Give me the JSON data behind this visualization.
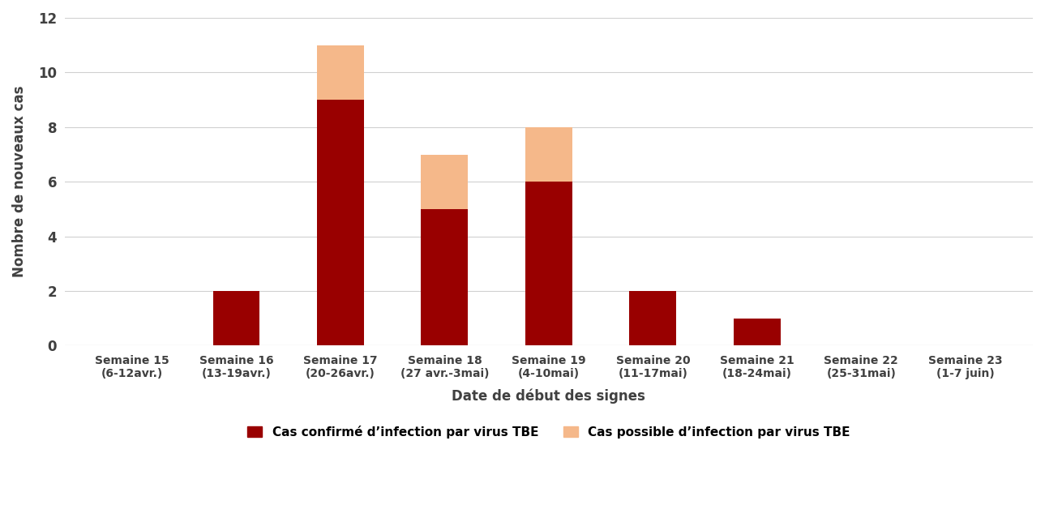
{
  "categories": [
    "Semaine 15\n(6-12avr.)",
    "Semaine 16\n(13-19avr.)",
    "Semaine 17\n(20-26avr.)",
    "Semaine 18\n(27 avr.-3mai)",
    "Semaine 19\n(4-10mai)",
    "Semaine 20\n(11-17mai)",
    "Semaine 21\n(18-24mai)",
    "Semaine 22\n(25-31mai)",
    "Semaine 23\n(1-7 juin)"
  ],
  "confirmed": [
    0,
    2,
    9,
    5,
    6,
    2,
    1,
    0,
    0
  ],
  "possible": [
    0,
    0,
    2,
    2,
    2,
    0,
    0,
    0,
    0
  ],
  "confirmed_color": "#990000",
  "possible_color": "#F5B88A",
  "ylabel": "Nombre de nouveaux cas",
  "xlabel": "Date de début des signes",
  "ylim": [
    0,
    12
  ],
  "yticks": [
    0,
    2,
    4,
    6,
    8,
    10,
    12
  ],
  "legend_confirmed": "Cas confirmé d’infection par virus TBE",
  "legend_possible": "Cas possible d’infection par virus TBE",
  "bar_width": 0.45,
  "background_color": "#ffffff",
  "grid_color": "#d0d0d0"
}
